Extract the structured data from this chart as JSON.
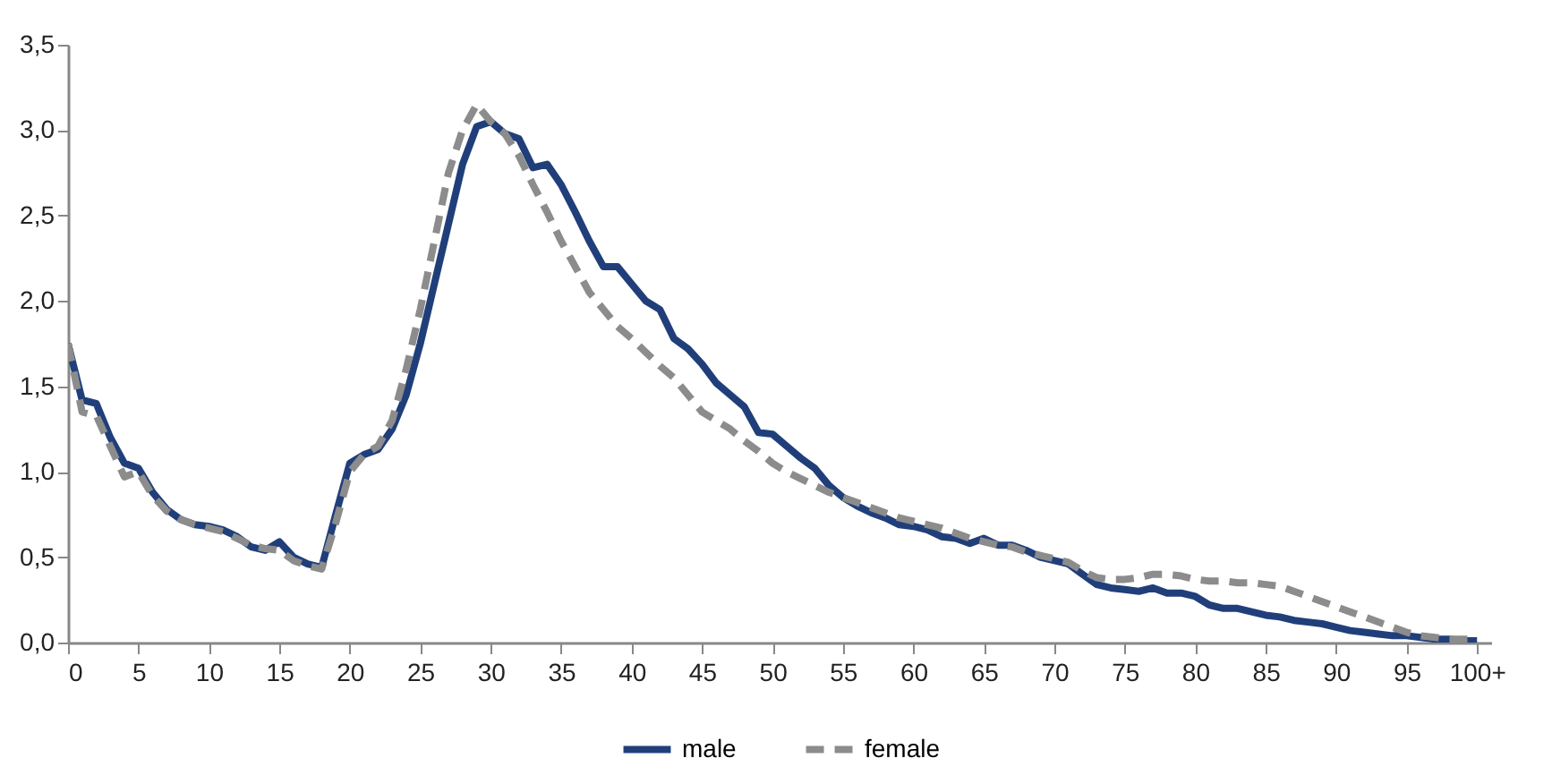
{
  "chart_data": {
    "type": "line",
    "x": [
      0,
      1,
      2,
      3,
      4,
      5,
      6,
      7,
      8,
      9,
      10,
      11,
      12,
      13,
      14,
      15,
      16,
      17,
      18,
      19,
      20,
      21,
      22,
      23,
      24,
      25,
      26,
      27,
      28,
      29,
      30,
      31,
      32,
      33,
      34,
      35,
      36,
      37,
      38,
      39,
      40,
      41,
      42,
      43,
      44,
      45,
      46,
      47,
      48,
      49,
      50,
      51,
      52,
      53,
      54,
      55,
      56,
      57,
      58,
      59,
      60,
      61,
      62,
      63,
      64,
      65,
      66,
      67,
      68,
      69,
      70,
      71,
      72,
      73,
      74,
      75,
      76,
      77,
      78,
      79,
      80,
      81,
      82,
      83,
      84,
      85,
      86,
      87,
      88,
      89,
      90,
      91,
      92,
      93,
      94,
      95,
      96,
      97,
      98,
      99,
      100
    ],
    "series": [
      {
        "name": "male",
        "color": "#203f7a",
        "line_style": "solid",
        "values": [
          1.75,
          1.42,
          1.4,
          1.2,
          1.05,
          1.02,
          0.88,
          0.78,
          0.72,
          0.69,
          0.68,
          0.66,
          0.62,
          0.56,
          0.54,
          0.59,
          0.5,
          0.46,
          0.44,
          0.75,
          1.05,
          1.1,
          1.13,
          1.25,
          1.45,
          1.75,
          2.1,
          2.45,
          2.8,
          3.02,
          3.05,
          2.98,
          2.95,
          2.78,
          2.8,
          2.68,
          2.52,
          2.35,
          2.2,
          2.2,
          2.1,
          2.0,
          1.95,
          1.78,
          1.72,
          1.63,
          1.52,
          1.45,
          1.38,
          1.23,
          1.22,
          1.15,
          1.08,
          1.02,
          0.92,
          0.85,
          0.8,
          0.76,
          0.73,
          0.69,
          0.68,
          0.66,
          0.62,
          0.61,
          0.58,
          0.61,
          0.57,
          0.57,
          0.54,
          0.5,
          0.48,
          0.46,
          0.4,
          0.34,
          0.32,
          0.31,
          0.3,
          0.32,
          0.29,
          0.29,
          0.27,
          0.22,
          0.2,
          0.2,
          0.18,
          0.16,
          0.15,
          0.13,
          0.12,
          0.11,
          0.09,
          0.07,
          0.06,
          0.05,
          0.04,
          0.04,
          0.03,
          0.02,
          0.02,
          0.01,
          0.01
        ]
      },
      {
        "name": "female",
        "color": "#8c8c8c",
        "line_style": "dashed",
        "values": [
          1.75,
          1.35,
          1.33,
          1.15,
          0.97,
          1.0,
          0.86,
          0.77,
          0.72,
          0.69,
          0.67,
          0.65,
          0.61,
          0.57,
          0.55,
          0.54,
          0.48,
          0.45,
          0.43,
          0.7,
          1.0,
          1.1,
          1.15,
          1.3,
          1.6,
          1.95,
          2.35,
          2.75,
          3.0,
          3.15,
          3.05,
          2.98,
          2.85,
          2.68,
          2.52,
          2.35,
          2.2,
          2.05,
          1.95,
          1.85,
          1.78,
          1.7,
          1.62,
          1.55,
          1.45,
          1.35,
          1.3,
          1.25,
          1.18,
          1.12,
          1.05,
          1.0,
          0.96,
          0.92,
          0.88,
          0.85,
          0.82,
          0.79,
          0.76,
          0.73,
          0.71,
          0.69,
          0.67,
          0.64,
          0.61,
          0.59,
          0.57,
          0.56,
          0.53,
          0.51,
          0.49,
          0.47,
          0.42,
          0.38,
          0.37,
          0.37,
          0.38,
          0.4,
          0.4,
          0.39,
          0.37,
          0.36,
          0.36,
          0.35,
          0.35,
          0.34,
          0.33,
          0.3,
          0.27,
          0.24,
          0.21,
          0.18,
          0.15,
          0.12,
          0.09,
          0.06,
          0.04,
          0.03,
          0.02,
          0.02,
          0.02
        ]
      }
    ],
    "xlim": [
      0,
      101
    ],
    "xticks": [
      0,
      5,
      10,
      15,
      20,
      25,
      30,
      35,
      40,
      45,
      50,
      55,
      60,
      65,
      70,
      75,
      80,
      85,
      90,
      95,
      {
        "value": 100,
        "label": "100+"
      }
    ],
    "ylim": [
      0,
      3.5
    ],
    "yticks": [
      {
        "value": 0,
        "label": "0,0"
      },
      {
        "value": 0.5,
        "label": "0,5"
      },
      {
        "value": 1,
        "label": "1,0"
      },
      {
        "value": 1.5,
        "label": "1,5"
      },
      {
        "value": 2,
        "label": "2,0"
      },
      {
        "value": 2.5,
        "label": "2,5"
      },
      {
        "value": 3,
        "label": "3,0"
      },
      {
        "value": 3.5,
        "label": "3,5"
      }
    ],
    "grid": false,
    "legend": "bottom"
  }
}
